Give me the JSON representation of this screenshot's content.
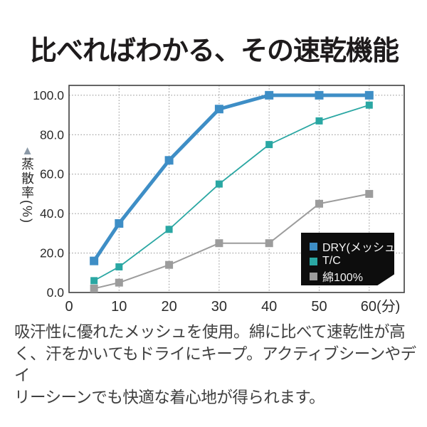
{
  "title": "比べればわかる、その速乾機能",
  "chart_data": {
    "type": "line",
    "x": [
      5,
      10,
      20,
      30,
      40,
      50,
      60
    ],
    "series": [
      {
        "name": "DRY(メッシュ)",
        "color": "#3e8ec6",
        "linewidth": 5,
        "marker": "square",
        "marker_size": 12,
        "values": [
          16,
          35,
          67,
          93,
          100,
          100,
          100
        ]
      },
      {
        "name": "T/C",
        "color": "#2aa7a3",
        "linewidth": 1.8,
        "marker": "square",
        "marker_size": 10,
        "values": [
          6,
          13,
          32,
          55,
          75,
          87,
          95
        ]
      },
      {
        "name": "綿100%",
        "color": "#9c9c9c",
        "linewidth": 2,
        "marker": "square",
        "marker_size": 11,
        "values": [
          2,
          5,
          14,
          25,
          25,
          45,
          50
        ]
      }
    ],
    "title": "",
    "ylabel": "蒸散率(%)",
    "ylabel_marker": "▲",
    "x_ticks": [
      0,
      10,
      20,
      30,
      40,
      50,
      60
    ],
    "x_tick_labels": [
      "0",
      "10",
      "20",
      "30",
      "40",
      "50",
      "60(分)"
    ],
    "y_ticks": [
      0,
      20,
      40,
      60,
      80,
      100
    ],
    "y_tick_labels": [
      "0.0",
      "20.0",
      "40.0",
      "60.0",
      "80.0",
      "100.0"
    ],
    "xlim": [
      0,
      67
    ],
    "ylim": [
      0,
      105
    ],
    "grid": "dotted",
    "grid_color": "#9a9a9a",
    "border_color": "#3f3f3f",
    "tick_label_color": "#2b2b2b",
    "legend_position": "inside-bottom-right",
    "legend_bg": "#0d0d0d",
    "legend_text_color": "#f4f4f4"
  },
  "description": {
    "lines": [
      "吸汗性に優れたメッシュを使用。綿に比べて速乾性が高",
      "く、汗をかいてもドライにキープ。アクティブシーンやデイ",
      "リーシーンでも快適な着心地が得られます。"
    ]
  }
}
